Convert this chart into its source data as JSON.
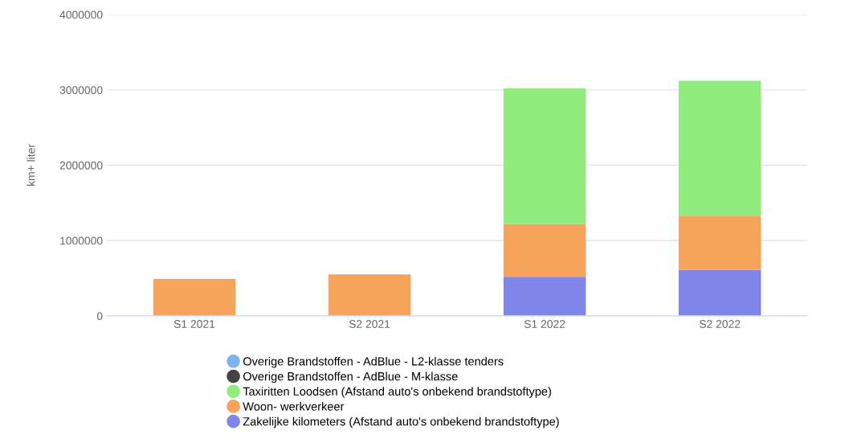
{
  "chart_data": {
    "type": "bar",
    "stacked": true,
    "ylabel": "km+ liter",
    "categories": [
      "S1 2021",
      "S2 2021",
      "S1 2022",
      "S2 2022"
    ],
    "series": [
      {
        "name": "Zakelijke kilometers (Afstand auto's onbekend brandstoftype)",
        "color": "#8085e9",
        "values": [
          null,
          null,
          520000,
          610000
        ]
      },
      {
        "name": "Woon- werkverkeer",
        "color": "#f7a35c",
        "values": [
          490000,
          550000,
          700000,
          720000
        ]
      },
      {
        "name": "Taxiritten Loodsen (Afstand auto's onbekend brandstoftype)",
        "color": "#90ed7d",
        "values": [
          null,
          null,
          1800000,
          1790000
        ]
      },
      {
        "name": "Overige Brandstoffen - AdBlue - M-klasse",
        "color": "#434348",
        "values": [
          null,
          null,
          null,
          null
        ]
      },
      {
        "name": "Overige Brandstoffen - AdBlue - L2-klasse tenders",
        "color": "#7cb5ec",
        "values": [
          null,
          null,
          null,
          null
        ]
      }
    ],
    "ylim": [
      0,
      4000000
    ],
    "yticks": [
      0,
      1000000,
      2000000,
      3000000,
      4000000
    ],
    "grid": "y",
    "legend": "bottom"
  }
}
